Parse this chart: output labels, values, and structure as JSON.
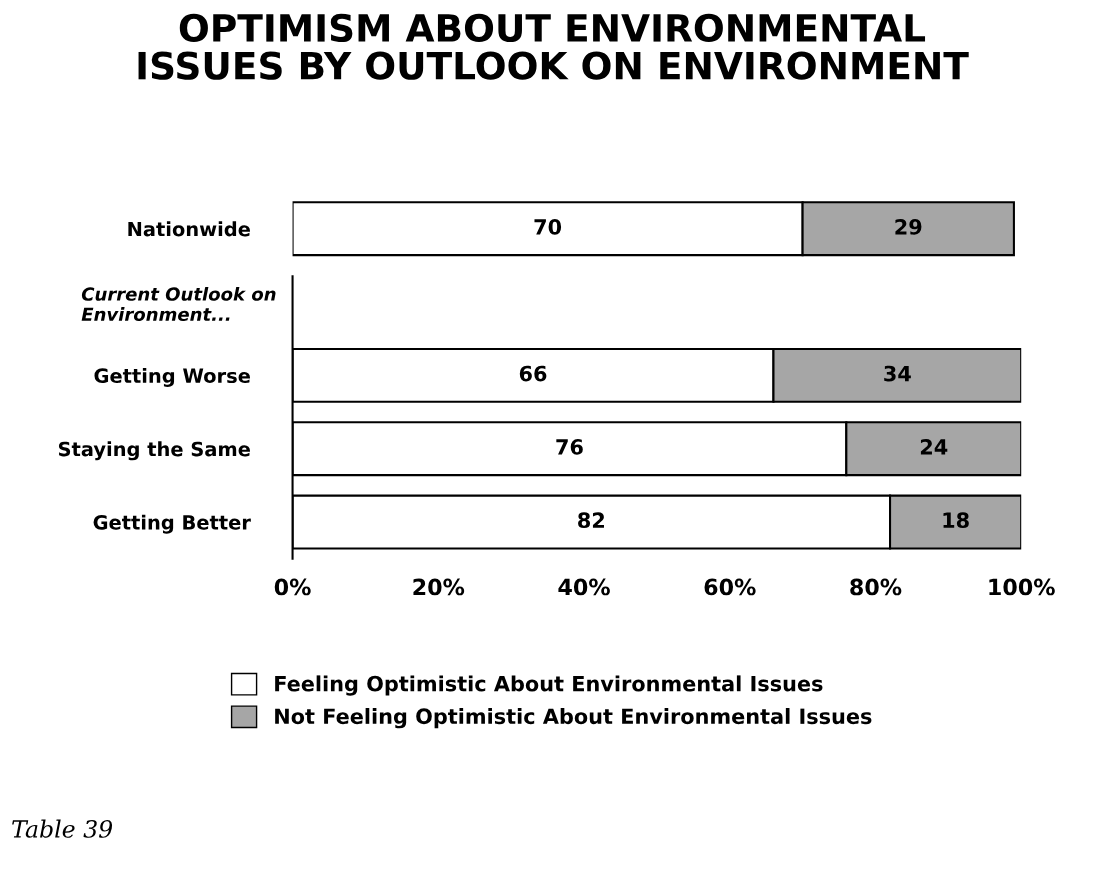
{
  "chart_data": {
    "type": "bar",
    "orientation": "horizontal",
    "stacked": true,
    "title": "OPTIMISM ABOUT ENVIRONMENTAL\nISSUES BY OUTLOOK ON ENVIRONMENT",
    "categories": [
      "Nationwide",
      null,
      "Getting Worse",
      "Staying the Same",
      "Getting Better"
    ],
    "series": [
      {
        "name": "Feeling Optimistic About Environmental Issues",
        "color": "#ffffff",
        "values": [
          70,
          null,
          66,
          76,
          82
        ]
      },
      {
        "name": "Not Feeling Optimistic About Environmental Issues",
        "color": "#a6a6a6",
        "values": [
          29,
          null,
          34,
          24,
          18
        ]
      }
    ],
    "data_labels": true,
    "xlim": [
      0,
      100
    ],
    "xticks": [
      {
        "value": 0,
        "label": "0%"
      },
      {
        "value": 20,
        "label": "20%"
      },
      {
        "value": 40,
        "label": "40%"
      },
      {
        "value": 60,
        "label": "60%"
      },
      {
        "value": 80,
        "label": "80%"
      },
      {
        "value": 100,
        "label": "100%"
      }
    ],
    "grid": false,
    "legend": "bottom",
    "annotations": [
      "Current Outlook on\nEnvironment...",
      "Table 39"
    ]
  }
}
